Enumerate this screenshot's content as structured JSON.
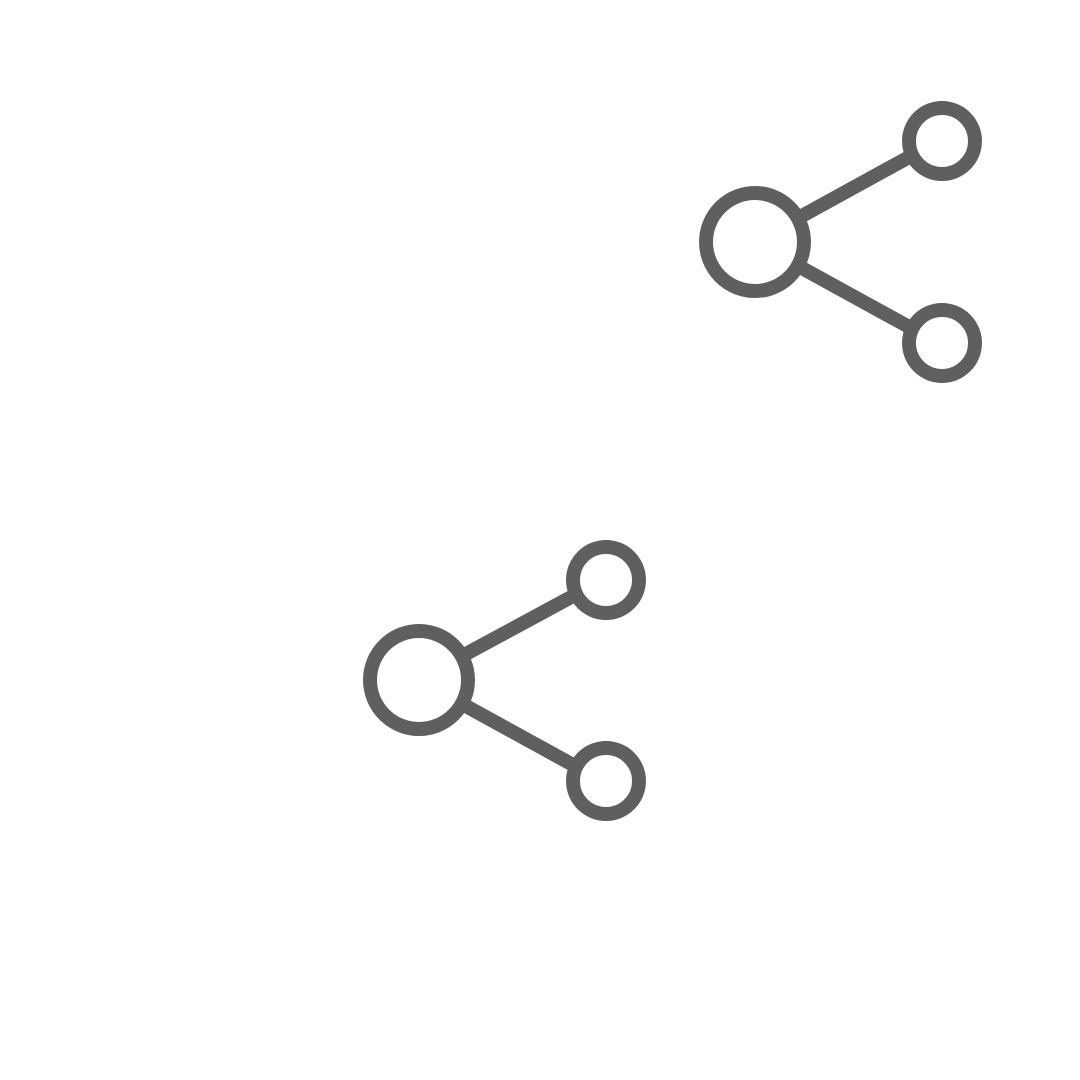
{
  "icons": [
    {
      "name": "share-icon",
      "semantic": "share-icon",
      "color": "#5f5f5f"
    },
    {
      "name": "share-icon",
      "semantic": "share-icon",
      "color": "#5f5f5f"
    }
  ],
  "background_color": "#ffffff"
}
